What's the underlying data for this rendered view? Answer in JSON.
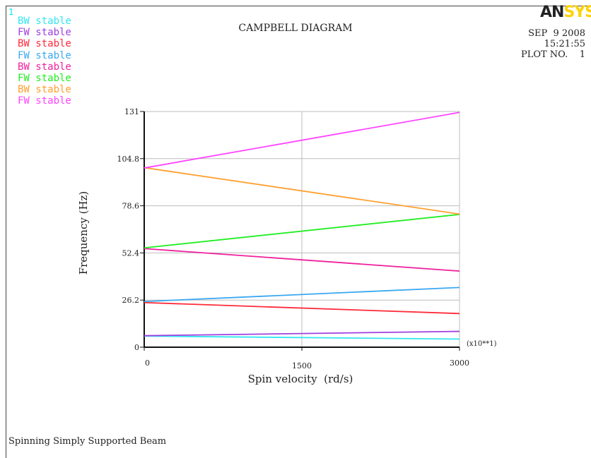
{
  "plot_index": "1",
  "brand": {
    "an": "AN",
    "ys": "SYS"
  },
  "meta": {
    "date": "SEP  9 2008",
    "time": "15:21:55",
    "plot_no": "PLOT NO.    1"
  },
  "footer": "Spinning Simply Supported Beam",
  "chart_data": {
    "type": "line",
    "title": "CAMPBELL DIAGRAM",
    "xlabel": "Spin velocity  (rd/s)",
    "ylabel": "Frequency (Hz)",
    "x_multiplier": "(x10**1)",
    "xlim": [
      0,
      3000
    ],
    "ylim": [
      0,
      131
    ],
    "x_ticks": [
      0,
      1500,
      3000
    ],
    "y_ticks": [
      0,
      26.2,
      52.4,
      78.6,
      104.8,
      131
    ],
    "x_tick_labels": [
      "0",
      "1500",
      "3000"
    ],
    "y_tick_labels": [
      "0",
      "26.2",
      "52.4",
      "78.6",
      "104.8",
      "131"
    ],
    "grid": true,
    "legend_position": "top-left",
    "series": [
      {
        "name": "BW stable",
        "color": "#33e6f0",
        "x": [
          0,
          3000
        ],
        "y": [
          6.2,
          4.5
        ]
      },
      {
        "name": "FW stable",
        "color": "#a040e0",
        "x": [
          0,
          3000
        ],
        "y": [
          6.4,
          8.8
        ]
      },
      {
        "name": "BW stable",
        "color": "#ff2a3a",
        "x": [
          0,
          3000
        ],
        "y": [
          24.8,
          18.7
        ]
      },
      {
        "name": "FW stable",
        "color": "#3aa8f0",
        "x": [
          0,
          3000
        ],
        "y": [
          25.4,
          33.2
        ]
      },
      {
        "name": "BW stable",
        "color": "#f0209e",
        "x": [
          0,
          3000
        ],
        "y": [
          54.8,
          42.3
        ]
      },
      {
        "name": "FW stable",
        "color": "#22ee22",
        "x": [
          0,
          3000
        ],
        "y": [
          55.2,
          73.8
        ]
      },
      {
        "name": "BW stable",
        "color": "#ffa030",
        "x": [
          0,
          3000
        ],
        "y": [
          99.8,
          74.0
        ]
      },
      {
        "name": "FW stable",
        "color": "#ff44ff",
        "x": [
          0,
          3000
        ],
        "y": [
          99.6,
          130.5
        ]
      }
    ]
  }
}
